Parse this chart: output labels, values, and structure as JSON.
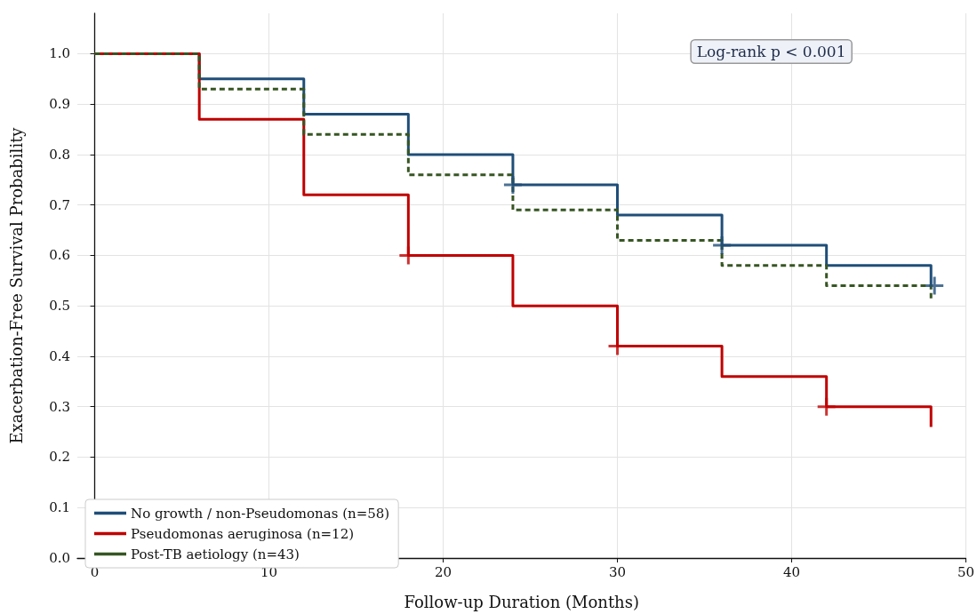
{
  "chart_data": {
    "type": "step",
    "xlabel": "Follow-up Duration (Months)",
    "ylabel": "Exacerbation-Free Survival Probability",
    "annotations": [
      "Log-rank p < 0.001"
    ],
    "xlim": [
      -1,
      50
    ],
    "xticks": [
      0,
      10,
      20,
      30,
      40,
      50
    ],
    "ylim": [
      0,
      1.08
    ],
    "yticks": [
      {
        "value": 0,
        "label": "0.0"
      },
      0.1,
      0.2,
      0.3,
      0.4,
      0.5,
      0.6,
      0.7,
      0.8,
      0.9,
      {
        "value": 1,
        "label": "1.0"
      }
    ],
    "grid": true,
    "legend": "bottom left",
    "marker": "none",
    "line_style": "solid",
    "series": [
      {
        "name": "No growth / non-Pseudomonas (n=58)",
        "color": "#1f4e79",
        "x": [
          0,
          6,
          12,
          18,
          24,
          30,
          36,
          42,
          48
        ],
        "values": [
          1,
          0.95,
          0.88,
          0.8,
          0.74,
          0.68,
          0.62,
          0.58,
          0.54
        ]
      },
      {
        "name": "Pseudomonas aeruginosa (n=12)",
        "color": "#c00000",
        "x": [
          0,
          6,
          12,
          18,
          24,
          30,
          36,
          42,
          48
        ],
        "values": [
          1,
          0.87,
          0.72,
          0.6,
          0.5,
          0.42,
          0.36,
          0.3,
          0.26
        ]
      },
      {
        "name": "Post-TB aetiology (n=43)",
        "color": "#375623",
        "line_style": "dashed",
        "x": [
          0,
          6,
          12,
          18,
          24,
          30,
          36,
          42,
          48
        ],
        "values": [
          1,
          0.93,
          0.84,
          0.76,
          0.69,
          0.63,
          0.58,
          0.54,
          0.51
        ]
      },
      {
        "type": "scatter",
        "marker": "cross",
        "color": "#1f4e79",
        "x": [
          24,
          36,
          48.2
        ],
        "values": [
          0.74,
          0.62,
          0.54
        ]
      },
      {
        "type": "scatter",
        "marker": "cross",
        "color": "#c00000",
        "x": [
          18,
          30,
          42
        ],
        "values": [
          0.6,
          0.42,
          0.3
        ]
      }
    ]
  }
}
